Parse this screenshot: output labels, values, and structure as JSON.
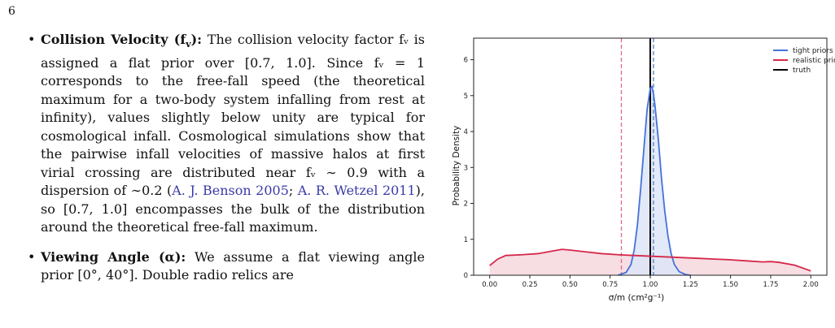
{
  "page_number": "6",
  "bullets": [
    {
      "title": "Collision Velocity (f",
      "title_sub": "v",
      "title_end": "):",
      "text": " The collision velocity factor fᵥ is assigned a flat prior over [0.7, 1.0]. Since fᵥ = 1 corresponds to the free-fall speed (the theoretical maximum for a two-body system infalling from rest at infinity), values slightly below unity are typical for cosmological infall. Cosmological simulations show that the pairwise infall velocities of massive halos at first virial crossing are distributed near fᵥ ∼ 0.9 with a dispersion of ∼0.2 (",
      "cite1": "A. J. Benson 2005",
      "sep": "; ",
      "cite2": "A. R. Wetzel 2011",
      "text_end": "), so [0.7, 1.0] encompasses the bulk of the distribution around the theoretical free-fall maximum."
    },
    {
      "title": "Viewing Angle (α):",
      "text": " We assume a flat viewing angle prior [0°, 40°]. Double radio relics are"
    }
  ],
  "chart_data": {
    "type": "area",
    "xlabel": "σ/m (cm²g⁻¹)",
    "ylabel": "Probability Density",
    "xlim": [
      -0.1,
      2.1
    ],
    "ylim": [
      0,
      6.6
    ],
    "xticks": [
      "0.00",
      "0.25",
      "0.50",
      "0.75",
      "1.00",
      "1.25",
      "1.50",
      "1.75",
      "2.00"
    ],
    "yticks": [
      "0",
      "1",
      "2",
      "3",
      "4",
      "5",
      "6"
    ],
    "legend": {
      "placement": "top-right",
      "entries": [
        "tight priors",
        "realistic priors",
        "truth"
      ]
    },
    "series": [
      {
        "name": "tight priors",
        "color": "#4472d9",
        "fill": "#dde5f7",
        "x": [
          0.8,
          0.85,
          0.88,
          0.9,
          0.92,
          0.94,
          0.96,
          0.98,
          1.0,
          1.01,
          1.02,
          1.03,
          1.05,
          1.07,
          1.09,
          1.11,
          1.13,
          1.15,
          1.18,
          1.22,
          1.25
        ],
        "y": [
          0.0,
          0.08,
          0.3,
          0.7,
          1.4,
          2.4,
          3.5,
          4.6,
          5.2,
          5.25,
          5.05,
          4.7,
          3.8,
          2.7,
          1.8,
          1.1,
          0.6,
          0.3,
          0.1,
          0.02,
          0.0
        ]
      },
      {
        "name": "realistic priors",
        "color": "#d6274a",
        "fill": "#f5d8de",
        "x": [
          0.0,
          0.05,
          0.1,
          0.2,
          0.3,
          0.4,
          0.45,
          0.5,
          0.6,
          0.7,
          0.8,
          0.9,
          1.0,
          1.1,
          1.2,
          1.3,
          1.4,
          1.5,
          1.6,
          1.7,
          1.75,
          1.8,
          1.9,
          2.0
        ],
        "y": [
          0.27,
          0.45,
          0.55,
          0.57,
          0.6,
          0.68,
          0.72,
          0.7,
          0.65,
          0.6,
          0.57,
          0.55,
          0.53,
          0.51,
          0.49,
          0.47,
          0.45,
          0.43,
          0.4,
          0.37,
          0.38,
          0.36,
          0.28,
          0.12
        ]
      }
    ],
    "vlines": [
      {
        "name": "realistic-prior-estimate",
        "x": 0.82,
        "color": "#e26a86",
        "style": "dashed"
      },
      {
        "name": "truth",
        "x": 1.0,
        "color": "#000000",
        "style": "solid"
      },
      {
        "name": "tight-prior-estimate",
        "x": 1.02,
        "color": "#4d7fbf",
        "style": "dashed"
      }
    ],
    "truth_color": "#000000"
  }
}
